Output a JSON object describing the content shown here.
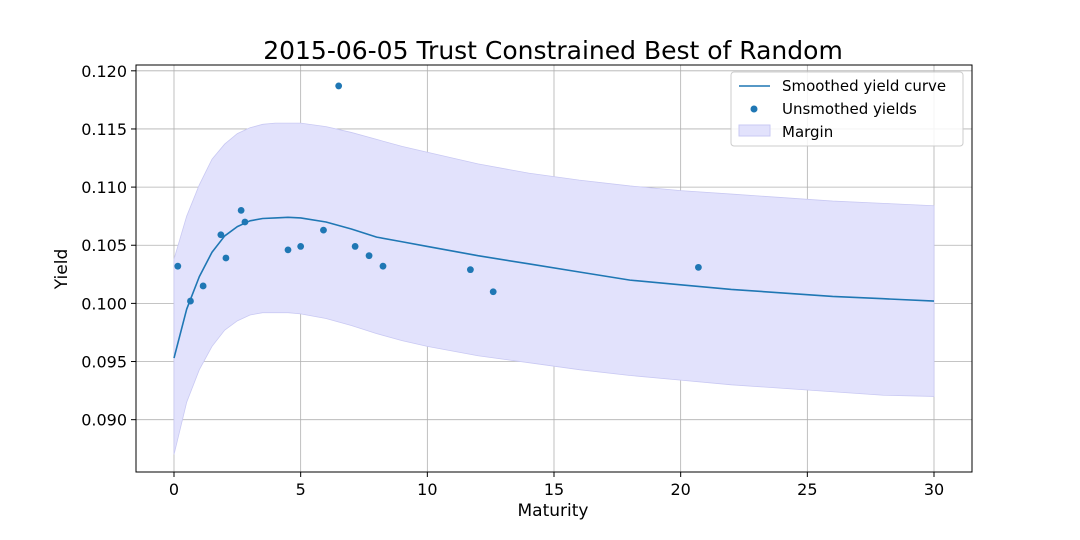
{
  "chart_data": {
    "type": "line",
    "title": "2015-06-05 Trust Constrained Best of Random",
    "xlabel": "Maturity",
    "ylabel": "Yield",
    "xlim": [
      -1.5,
      31.5
    ],
    "ylim": [
      0.0855,
      0.1205
    ],
    "xticks": [
      0,
      5,
      10,
      15,
      20,
      25,
      30
    ],
    "yticks": [
      0.09,
      0.095,
      0.1,
      0.105,
      0.11,
      0.115,
      0.12
    ],
    "xtick_labels": [
      "0",
      "5",
      "10",
      "15",
      "20",
      "25",
      "30"
    ],
    "ytick_labels": [
      "0.090",
      "0.095",
      "0.100",
      "0.105",
      "0.110",
      "0.115",
      "0.120"
    ],
    "grid": true,
    "legend": {
      "position": "top-right",
      "entries": [
        "Smoothed yield curve",
        "Unsmothed yields",
        "Margin"
      ]
    },
    "colors": {
      "curve": "#1f77b4",
      "points": "#1f77b4",
      "margin_fill": "#e2e2fc",
      "margin_edge": "#c9c9f3"
    },
    "smoothed_curve": {
      "name": "Smoothed yield curve",
      "x": [
        0,
        0.5,
        1,
        1.5,
        2,
        2.5,
        3,
        3.5,
        4,
        4.5,
        5,
        6,
        7,
        8,
        9,
        10,
        12,
        14,
        16,
        18,
        20,
        22,
        24,
        26,
        28,
        30
      ],
      "y": [
        0.0953,
        0.0995,
        0.1023,
        0.1044,
        0.1058,
        0.1066,
        0.1071,
        0.1073,
        0.10735,
        0.1074,
        0.10735,
        0.107,
        0.1064,
        0.1057,
        0.1053,
        0.1049,
        0.1041,
        0.1034,
        0.1027,
        0.102,
        0.1016,
        0.1012,
        0.1009,
        0.1006,
        0.1004,
        0.1002
      ]
    },
    "unsmoothed_yields": {
      "name": "Unsmothed yields",
      "x": [
        0.15,
        0.65,
        1.15,
        1.85,
        2.05,
        2.65,
        2.8,
        4.5,
        5.0,
        5.9,
        6.5,
        7.15,
        7.7,
        8.25,
        11.7,
        12.6,
        20.7
      ],
      "y": [
        0.1032,
        0.1002,
        0.1015,
        0.1059,
        0.1039,
        0.108,
        0.107,
        0.1046,
        0.1049,
        0.1063,
        0.1187,
        0.1049,
        0.1041,
        0.1032,
        0.1029,
        0.101,
        0.1031
      ]
    },
    "margin": {
      "name": "Margin",
      "x": [
        0,
        0.5,
        1,
        1.5,
        2,
        2.5,
        3,
        3.5,
        4,
        4.5,
        5,
        6,
        7,
        8,
        9,
        10,
        12,
        14,
        16,
        18,
        20,
        22,
        24,
        26,
        28,
        30
      ],
      "upper": [
        0.1038,
        0.1075,
        0.1102,
        0.1124,
        0.1137,
        0.1146,
        0.1151,
        0.1154,
        0.1155,
        0.1155,
        0.1155,
        0.1152,
        0.1147,
        0.1141,
        0.1135,
        0.113,
        0.112,
        0.1112,
        0.1106,
        0.1101,
        0.1097,
        0.1094,
        0.1091,
        0.1088,
        0.1086,
        0.1084
      ],
      "lower": [
        0.087,
        0.0915,
        0.0943,
        0.0963,
        0.0977,
        0.0985,
        0.099,
        0.0992,
        0.0992,
        0.0992,
        0.0991,
        0.0987,
        0.0981,
        0.0974,
        0.0968,
        0.0963,
        0.0955,
        0.0949,
        0.0943,
        0.0938,
        0.0934,
        0.093,
        0.0927,
        0.0924,
        0.0921,
        0.092
      ]
    }
  }
}
